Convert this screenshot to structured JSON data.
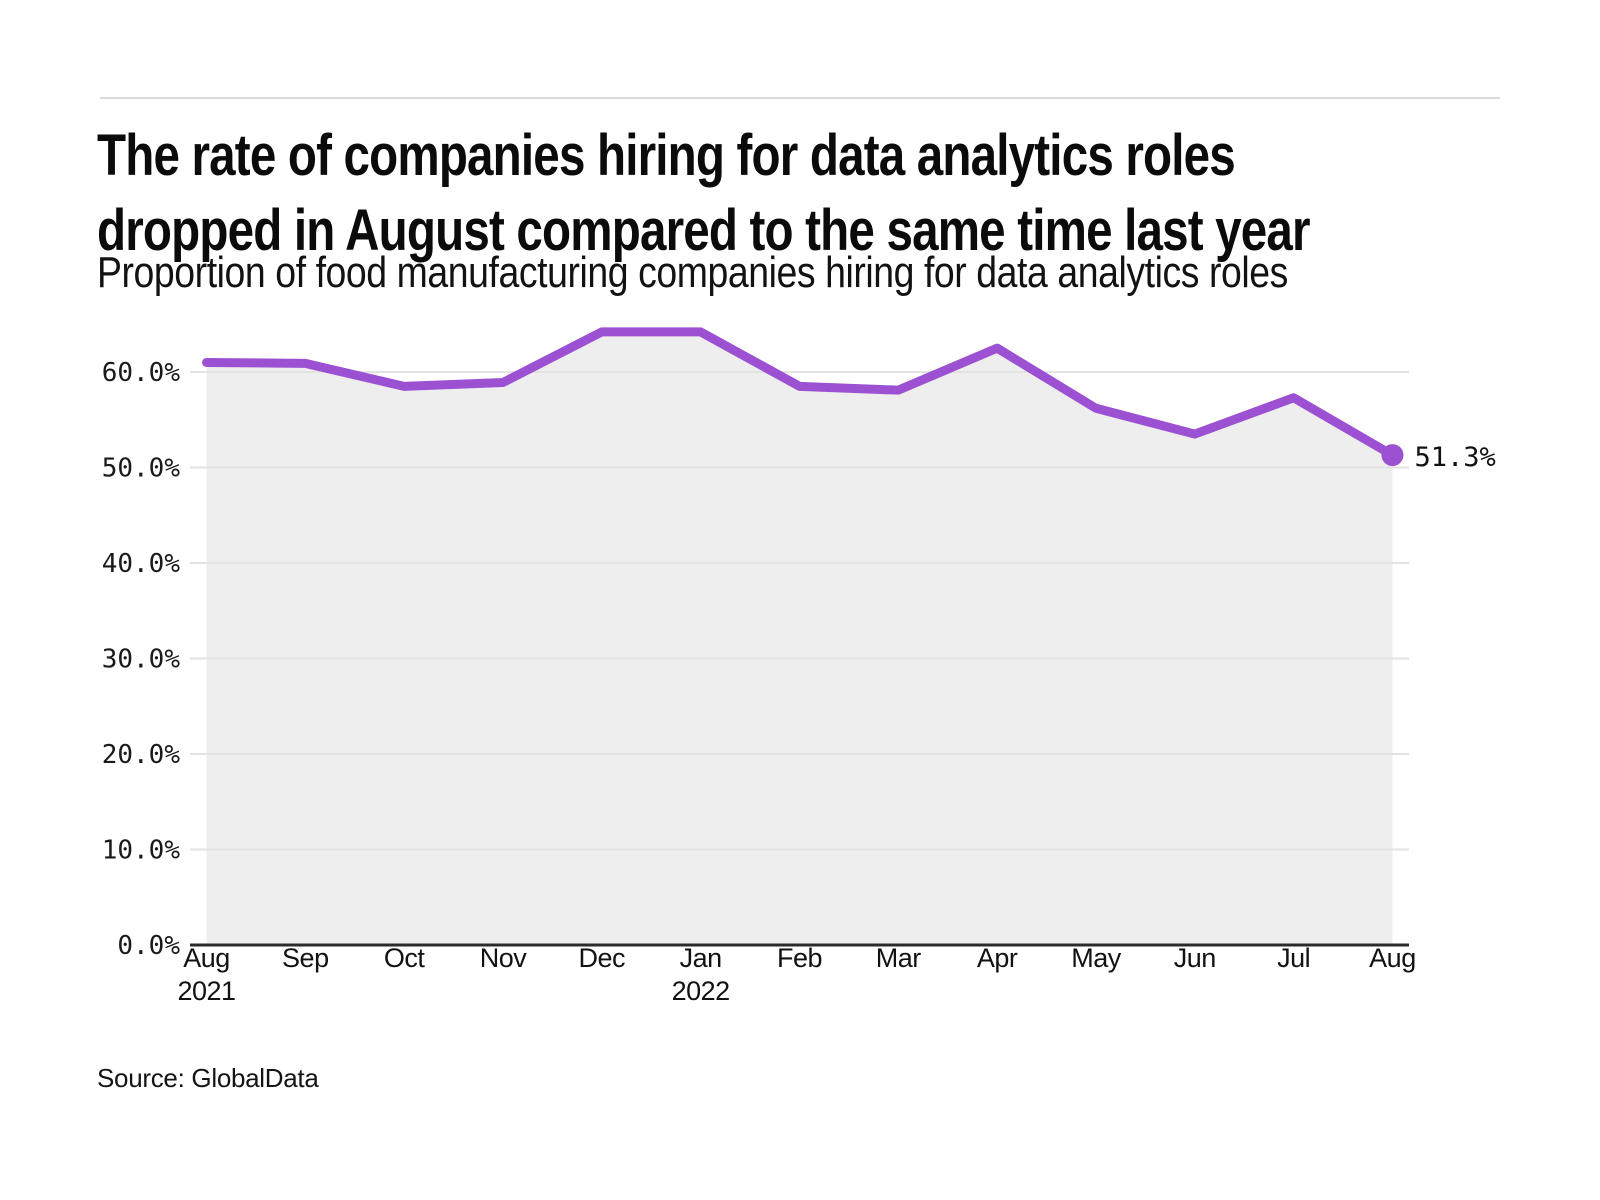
{
  "header": {
    "title_line1": "The rate of companies hiring for data analytics roles",
    "title_line2": "dropped in August compared to the same time last year",
    "subtitle": "Proportion of food manufacturing companies hiring for data analytics roles"
  },
  "footer": {
    "source": "Source: GlobalData"
  },
  "chart_data": {
    "type": "area",
    "title": "The rate of companies hiring for data analytics roles dropped in August compared to the same time last year",
    "subtitle": "Proportion of food manufacturing companies hiring for data analytics roles",
    "categories": [
      "Aug",
      "Sep",
      "Oct",
      "Nov",
      "Dec",
      "Jan",
      "Feb",
      "Mar",
      "Apr",
      "May",
      "Jun",
      "Jul",
      "Aug"
    ],
    "year_labels": [
      {
        "index": 0,
        "text": "2021"
      },
      {
        "index": 5,
        "text": "2022"
      }
    ],
    "values": [
      61.0,
      60.9,
      58.5,
      58.9,
      64.2,
      64.2,
      58.5,
      58.1,
      62.5,
      56.2,
      53.5,
      57.3,
      51.3
    ],
    "unit": "%",
    "end_point_label": "51.3%",
    "y_ticks": [
      {
        "value": 0,
        "label": "0.0%"
      },
      {
        "value": 10,
        "label": "10.0%"
      },
      {
        "value": 20,
        "label": "20.0%"
      },
      {
        "value": 30,
        "label": "30.0%"
      },
      {
        "value": 40,
        "label": "40.0%"
      },
      {
        "value": 50,
        "label": "50.0%"
      },
      {
        "value": 60,
        "label": "60.0%"
      }
    ],
    "ylim": [
      0,
      65
    ],
    "grid": "horizontal",
    "legend": "none",
    "line_color": "#9c51d2",
    "fill_color": "#efeeee",
    "grid_color": "#e3e3e3",
    "axis_color": "#2b2b2b",
    "source": "Source: GlobalData"
  }
}
